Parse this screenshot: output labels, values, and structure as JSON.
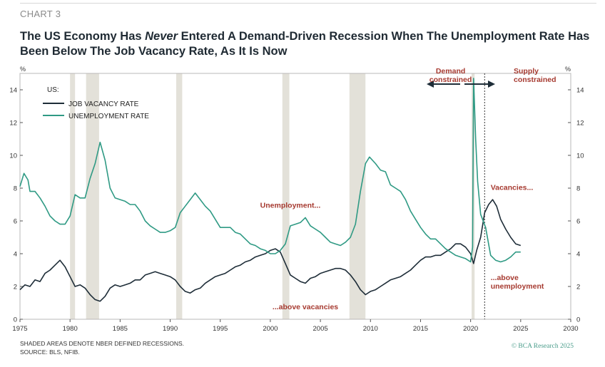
{
  "header": {
    "chart_number": "CHART 3",
    "title_part1": "The US Economy Has ",
    "title_emph": "Never",
    "title_part2": " Entered A Demand-Driven Recession When The Unemployment Rate Has Been Below The Job Vacancy Rate, As It Is Now"
  },
  "footer": {
    "note": "SHADED AREAS DENOTE NBER DEFINED RECESSIONS.",
    "source": "SOURCE: BLS, NFIB.",
    "credit": "© BCA Research 2025"
  },
  "colors": {
    "vacancy": "#1e2d38",
    "unemployment": "#2f9a84",
    "annotation": "#a63a30",
    "recession": "#e3e1d9"
  },
  "chart_data": {
    "type": "line",
    "title": "The US Economy Has Never Entered A Demand-Driven Recession When The Unemployment Rate Has Been Below The Job Vacancy Rate, As It Is Now",
    "xlabel": "",
    "ylabel_left": "%",
    "ylabel_right": "%",
    "xlim": [
      1975,
      2030
    ],
    "ylim": [
      0,
      15
    ],
    "x_ticks": [
      1975,
      1980,
      1985,
      1990,
      1995,
      2000,
      2005,
      2010,
      2015,
      2020,
      2025,
      2030
    ],
    "y_ticks": [
      0,
      2,
      4,
      6,
      8,
      10,
      12,
      14
    ],
    "legend": {
      "title": "US:",
      "position": "top-left"
    },
    "recessions": [
      [
        1980.0,
        1980.5
      ],
      [
        1981.6,
        1982.9
      ],
      [
        1990.6,
        1991.2
      ],
      [
        2001.2,
        2001.9
      ],
      [
        2007.9,
        2009.5
      ],
      [
        2020.1,
        2020.4
      ]
    ],
    "vline_x": 2021.4,
    "series": [
      {
        "name": "JOB VACANCY RATE",
        "color": "#1e2d38",
        "points": [
          [
            1975,
            1.8
          ],
          [
            1975.5,
            2.1
          ],
          [
            1976,
            2.0
          ],
          [
            1976.5,
            2.4
          ],
          [
            1977,
            2.3
          ],
          [
            1977.5,
            2.8
          ],
          [
            1978,
            3.0
          ],
          [
            1978.5,
            3.3
          ],
          [
            1979,
            3.6
          ],
          [
            1979.5,
            3.2
          ],
          [
            1980,
            2.6
          ],
          [
            1980.5,
            2.0
          ],
          [
            1981,
            2.1
          ],
          [
            1981.5,
            1.9
          ],
          [
            1982,
            1.5
          ],
          [
            1982.5,
            1.2
          ],
          [
            1983,
            1.1
          ],
          [
            1983.5,
            1.4
          ],
          [
            1984,
            1.9
          ],
          [
            1984.5,
            2.1
          ],
          [
            1985,
            2.0
          ],
          [
            1985.5,
            2.1
          ],
          [
            1986,
            2.2
          ],
          [
            1986.5,
            2.4
          ],
          [
            1987,
            2.4
          ],
          [
            1987.5,
            2.7
          ],
          [
            1988,
            2.8
          ],
          [
            1988.5,
            2.9
          ],
          [
            1989,
            2.8
          ],
          [
            1989.5,
            2.7
          ],
          [
            1990,
            2.6
          ],
          [
            1990.5,
            2.4
          ],
          [
            1991,
            2.0
          ],
          [
            1991.5,
            1.7
          ],
          [
            1992,
            1.6
          ],
          [
            1992.5,
            1.8
          ],
          [
            1993,
            1.9
          ],
          [
            1993.5,
            2.2
          ],
          [
            1994,
            2.4
          ],
          [
            1994.5,
            2.6
          ],
          [
            1995,
            2.7
          ],
          [
            1995.5,
            2.8
          ],
          [
            1996,
            3.0
          ],
          [
            1996.5,
            3.2
          ],
          [
            1997,
            3.3
          ],
          [
            1997.5,
            3.5
          ],
          [
            1998,
            3.6
          ],
          [
            1998.5,
            3.8
          ],
          [
            1999,
            3.9
          ],
          [
            1999.5,
            4.0
          ],
          [
            2000,
            4.2
          ],
          [
            2000.5,
            4.3
          ],
          [
            2001,
            4.1
          ],
          [
            2001.5,
            3.4
          ],
          [
            2002,
            2.7
          ],
          [
            2002.5,
            2.5
          ],
          [
            2003,
            2.3
          ],
          [
            2003.5,
            2.2
          ],
          [
            2004,
            2.5
          ],
          [
            2004.5,
            2.6
          ],
          [
            2005,
            2.8
          ],
          [
            2005.5,
            2.9
          ],
          [
            2006,
            3.0
          ],
          [
            2006.5,
            3.1
          ],
          [
            2007,
            3.1
          ],
          [
            2007.5,
            3.0
          ],
          [
            2008,
            2.7
          ],
          [
            2008.5,
            2.3
          ],
          [
            2009,
            1.8
          ],
          [
            2009.5,
            1.5
          ],
          [
            2010,
            1.7
          ],
          [
            2010.5,
            1.8
          ],
          [
            2011,
            2.0
          ],
          [
            2011.5,
            2.2
          ],
          [
            2012,
            2.4
          ],
          [
            2012.5,
            2.5
          ],
          [
            2013,
            2.6
          ],
          [
            2013.5,
            2.8
          ],
          [
            2014,
            3.0
          ],
          [
            2014.5,
            3.3
          ],
          [
            2015,
            3.6
          ],
          [
            2015.5,
            3.8
          ],
          [
            2016,
            3.8
          ],
          [
            2016.5,
            3.9
          ],
          [
            2017,
            3.9
          ],
          [
            2017.5,
            4.1
          ],
          [
            2018,
            4.3
          ],
          [
            2018.5,
            4.6
          ],
          [
            2019,
            4.6
          ],
          [
            2019.5,
            4.4
          ],
          [
            2020,
            4.0
          ],
          [
            2020.3,
            3.4
          ],
          [
            2020.6,
            4.2
          ],
          [
            2021,
            5.0
          ],
          [
            2021.4,
            6.5
          ],
          [
            2021.8,
            7.0
          ],
          [
            2022.2,
            7.3
          ],
          [
            2022.6,
            6.9
          ],
          [
            2023,
            6.1
          ],
          [
            2023.5,
            5.5
          ],
          [
            2024,
            5.0
          ],
          [
            2024.5,
            4.6
          ],
          [
            2025,
            4.5
          ]
        ]
      },
      {
        "name": "UNEMPLOYMENT RATE",
        "color": "#2f9a84",
        "points": [
          [
            1975,
            8.1
          ],
          [
            1975.4,
            8.9
          ],
          [
            1975.8,
            8.5
          ],
          [
            1976,
            7.8
          ],
          [
            1976.5,
            7.8
          ],
          [
            1977,
            7.4
          ],
          [
            1977.5,
            6.9
          ],
          [
            1978,
            6.3
          ],
          [
            1978.5,
            6.0
          ],
          [
            1979,
            5.8
          ],
          [
            1979.5,
            5.8
          ],
          [
            1980,
            6.3
          ],
          [
            1980.5,
            7.6
          ],
          [
            1981,
            7.4
          ],
          [
            1981.5,
            7.4
          ],
          [
            1982,
            8.6
          ],
          [
            1982.5,
            9.5
          ],
          [
            1983,
            10.8
          ],
          [
            1983.5,
            9.7
          ],
          [
            1984,
            8.0
          ],
          [
            1984.5,
            7.4
          ],
          [
            1985,
            7.3
          ],
          [
            1985.5,
            7.2
          ],
          [
            1986,
            7.0
          ],
          [
            1986.5,
            7.0
          ],
          [
            1987,
            6.6
          ],
          [
            1987.5,
            6.0
          ],
          [
            1988,
            5.7
          ],
          [
            1988.5,
            5.5
          ],
          [
            1989,
            5.3
          ],
          [
            1989.5,
            5.3
          ],
          [
            1990,
            5.4
          ],
          [
            1990.5,
            5.6
          ],
          [
            1991,
            6.5
          ],
          [
            1991.5,
            6.9
          ],
          [
            1992,
            7.3
          ],
          [
            1992.5,
            7.7
          ],
          [
            1993,
            7.3
          ],
          [
            1993.5,
            6.9
          ],
          [
            1994,
            6.6
          ],
          [
            1994.5,
            6.1
          ],
          [
            1995,
            5.6
          ],
          [
            1995.5,
            5.6
          ],
          [
            1996,
            5.6
          ],
          [
            1996.5,
            5.3
          ],
          [
            1997,
            5.2
          ],
          [
            1997.5,
            4.9
          ],
          [
            1998,
            4.6
          ],
          [
            1998.5,
            4.5
          ],
          [
            1999,
            4.3
          ],
          [
            1999.5,
            4.2
          ],
          [
            2000,
            4.0
          ],
          [
            2000.5,
            4.0
          ],
          [
            2001,
            4.2
          ],
          [
            2001.5,
            4.6
          ],
          [
            2002,
            5.7
          ],
          [
            2002.5,
            5.8
          ],
          [
            2003,
            5.9
          ],
          [
            2003.5,
            6.2
          ],
          [
            2004,
            5.7
          ],
          [
            2004.5,
            5.5
          ],
          [
            2005,
            5.3
          ],
          [
            2005.5,
            5.0
          ],
          [
            2006,
            4.7
          ],
          [
            2006.5,
            4.6
          ],
          [
            2007,
            4.5
          ],
          [
            2007.5,
            4.7
          ],
          [
            2008,
            5.0
          ],
          [
            2008.5,
            5.8
          ],
          [
            2009,
            7.8
          ],
          [
            2009.5,
            9.5
          ],
          [
            2009.9,
            9.9
          ],
          [
            2010.5,
            9.5
          ],
          [
            2011,
            9.1
          ],
          [
            2011.5,
            9.0
          ],
          [
            2012,
            8.2
          ],
          [
            2012.5,
            8.0
          ],
          [
            2013,
            7.8
          ],
          [
            2013.5,
            7.3
          ],
          [
            2014,
            6.6
          ],
          [
            2014.5,
            6.1
          ],
          [
            2015,
            5.6
          ],
          [
            2015.5,
            5.2
          ],
          [
            2016,
            4.9
          ],
          [
            2016.5,
            4.9
          ],
          [
            2017,
            4.6
          ],
          [
            2017.5,
            4.3
          ],
          [
            2018,
            4.1
          ],
          [
            2018.5,
            3.9
          ],
          [
            2019,
            3.8
          ],
          [
            2019.5,
            3.7
          ],
          [
            2020,
            3.5
          ],
          [
            2020.2,
            4.4
          ],
          [
            2020.3,
            14.7
          ],
          [
            2020.5,
            11.0
          ],
          [
            2020.7,
            8.4
          ],
          [
            2021,
            6.4
          ],
          [
            2021.5,
            5.6
          ],
          [
            2022,
            3.9
          ],
          [
            2022.5,
            3.6
          ],
          [
            2023,
            3.5
          ],
          [
            2023.5,
            3.6
          ],
          [
            2024,
            3.8
          ],
          [
            2024.5,
            4.1
          ],
          [
            2025,
            4.1
          ]
        ]
      }
    ],
    "annotations": [
      {
        "text": "Demand",
        "text2": "constrained",
        "x": 2018.0,
        "y": 15.0,
        "anchor": "middle"
      },
      {
        "text": "Supply",
        "text2": "constrained",
        "x": 2024.3,
        "y": 15.0,
        "anchor": "start"
      },
      {
        "text": "Unemployment...",
        "text2": "",
        "x": 2002.0,
        "y": 6.8,
        "anchor": "middle"
      },
      {
        "text": "Vacancies...",
        "text2": "",
        "x": 2022.0,
        "y": 7.9,
        "anchor": "start"
      },
      {
        "text": "...above vacancies",
        "text2": "",
        "x": 2003.5,
        "y": 0.6,
        "anchor": "middle"
      },
      {
        "text": "...above",
        "text2": "unemployment",
        "x": 2022.0,
        "y": 2.4,
        "anchor": "start"
      }
    ]
  }
}
